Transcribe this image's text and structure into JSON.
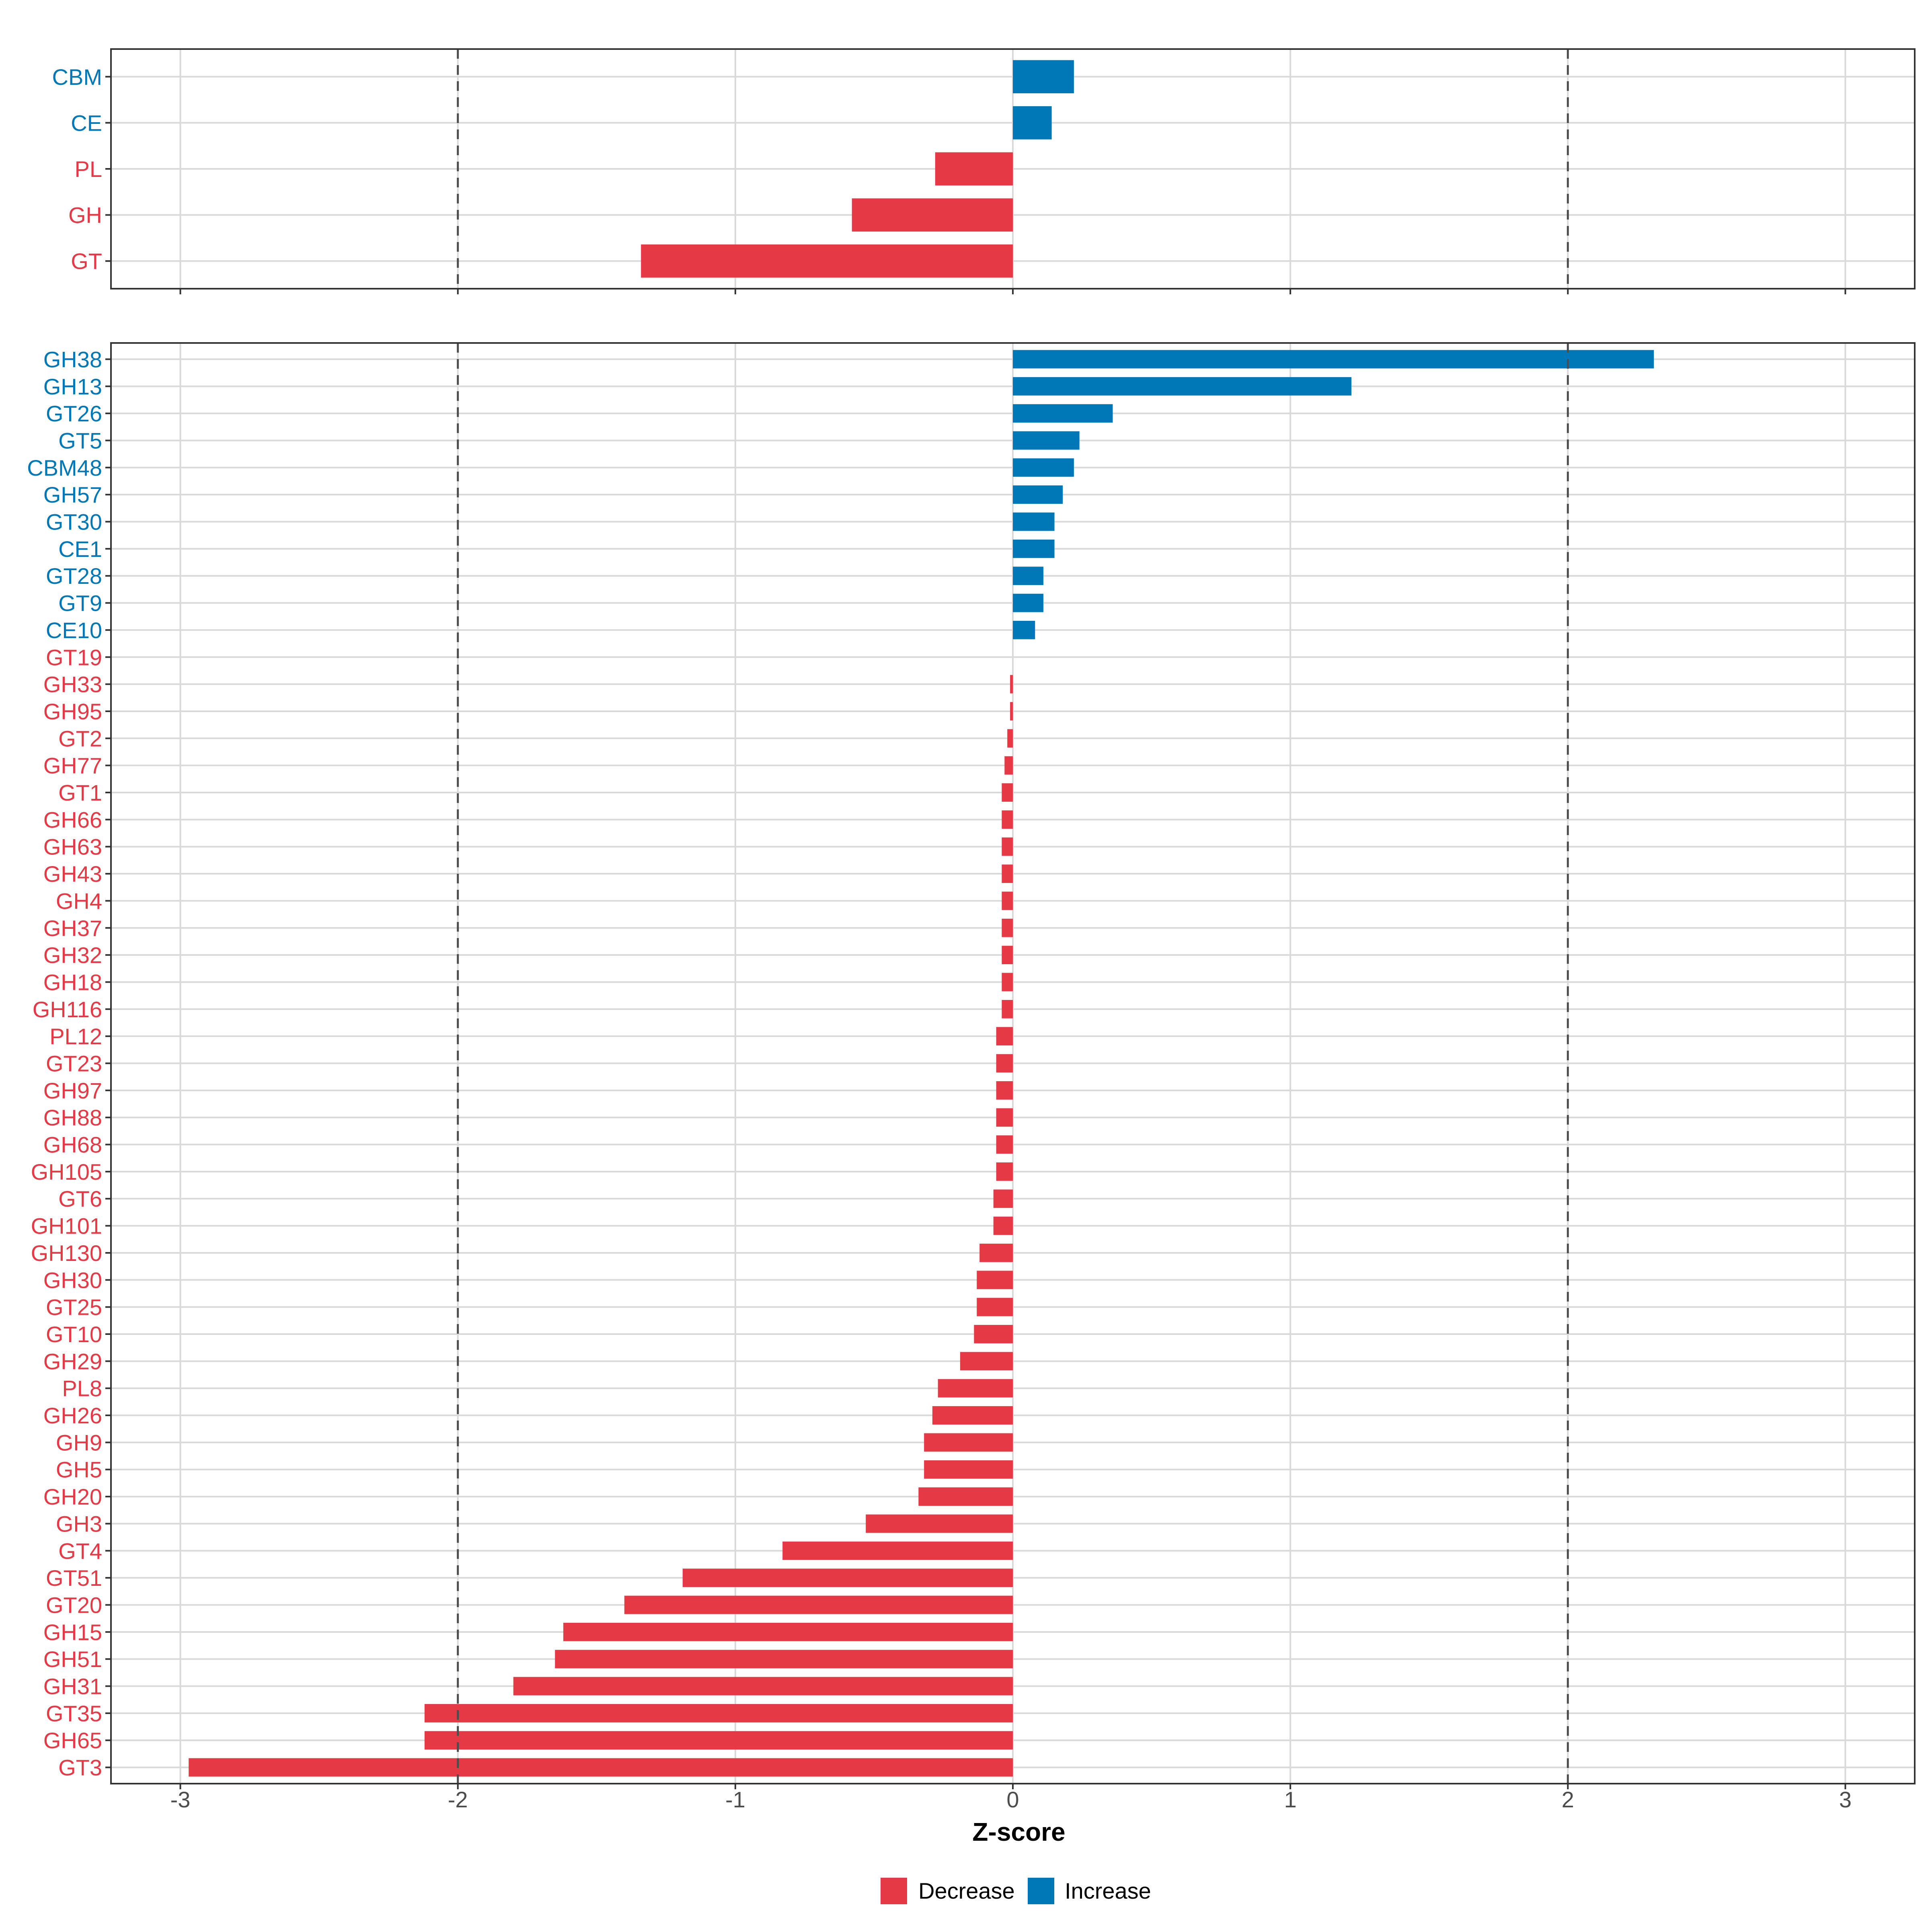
{
  "colors": {
    "decrease": "#E63946",
    "increase": "#0077B6",
    "grid": "#d9d9d9",
    "panel_border": "#333333",
    "threshold_line": "#4d4d4d"
  },
  "chart_data": [
    {
      "type": "bar",
      "orientation": "horizontal",
      "panel": "top",
      "categories": [
        "CBM",
        "CE",
        "PL",
        "GH",
        "GT"
      ],
      "values": [
        0.22,
        0.14,
        -0.28,
        -0.58,
        -1.34
      ],
      "xlim": [
        -3.25,
        3.25
      ],
      "xticks": [
        -3,
        -2,
        -1,
        0,
        1,
        2,
        3
      ],
      "threshold_lines": [
        -2,
        2
      ],
      "grid": true
    },
    {
      "type": "bar",
      "orientation": "horizontal",
      "panel": "bottom",
      "categories": [
        "GH38",
        "GH13",
        "GT26",
        "GT5",
        "CBM48",
        "GH57",
        "GT30",
        "CE1",
        "GT28",
        "GT9",
        "CE10",
        "GT19",
        "GH33",
        "GH95",
        "GT2",
        "GH77",
        "GT1",
        "GH66",
        "GH63",
        "GH43",
        "GH4",
        "GH37",
        "GH32",
        "GH18",
        "GH116",
        "PL12",
        "GT23",
        "GH97",
        "GH88",
        "GH68",
        "GH105",
        "GT6",
        "GH101",
        "GH130",
        "GH30",
        "GT25",
        "GT10",
        "GH29",
        "PL8",
        "GH26",
        "GH9",
        "GH5",
        "GH20",
        "GH3",
        "GT4",
        "GT51",
        "GT20",
        "GH15",
        "GH51",
        "GH31",
        "GT35",
        "GH65",
        "GT3"
      ],
      "values": [
        2.31,
        1.22,
        0.36,
        0.24,
        0.22,
        0.18,
        0.15,
        0.15,
        0.11,
        0.11,
        0.08,
        0.0,
        -0.01,
        -0.01,
        -0.02,
        -0.03,
        -0.04,
        -0.04,
        -0.04,
        -0.04,
        -0.04,
        -0.04,
        -0.04,
        -0.04,
        -0.04,
        -0.06,
        -0.06,
        -0.06,
        -0.06,
        -0.06,
        -0.06,
        -0.07,
        -0.07,
        -0.12,
        -0.13,
        -0.13,
        -0.14,
        -0.19,
        -0.27,
        -0.29,
        -0.32,
        -0.32,
        -0.34,
        -0.53,
        -0.83,
        -1.19,
        -1.4,
        -1.62,
        -1.65,
        -1.8,
        -2.12,
        -2.12,
        -2.97
      ],
      "xlim": [
        -3.25,
        3.25
      ],
      "xticks": [
        -3,
        -2,
        -1,
        0,
        1,
        2,
        3
      ],
      "xtick_labels": [
        "-3",
        "-2",
        "-1",
        "0",
        "1",
        "2",
        "3"
      ],
      "xlabel": "Z-score",
      "threshold_lines": [
        -2,
        2
      ],
      "grid": true
    }
  ],
  "legend": {
    "placement": "bottom",
    "items": [
      {
        "label": "Decrease",
        "color_key": "decrease"
      },
      {
        "label": "Increase",
        "color_key": "increase"
      }
    ]
  }
}
